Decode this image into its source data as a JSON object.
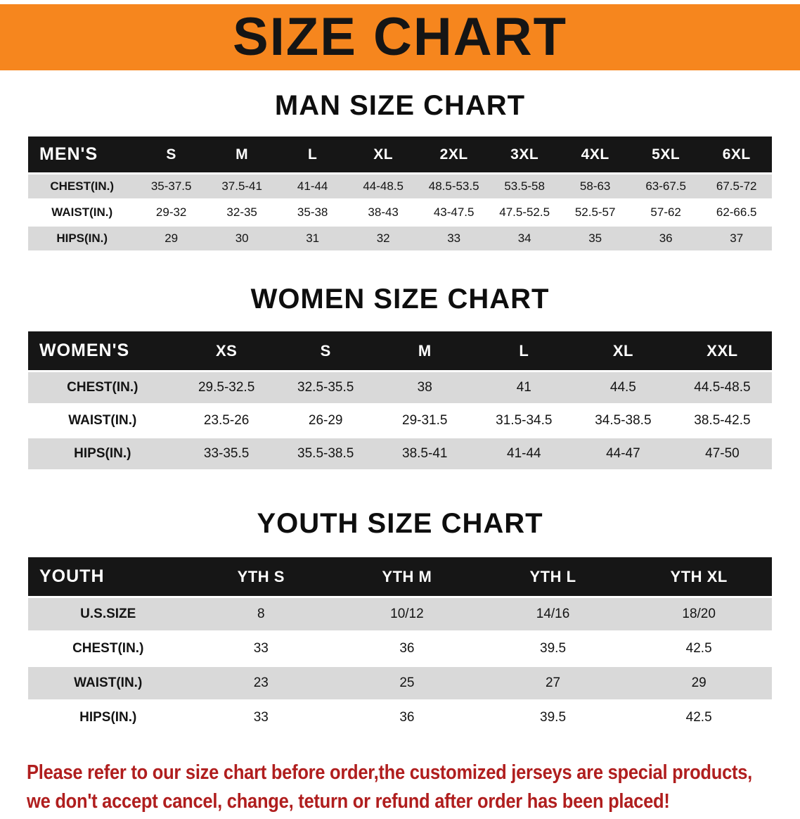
{
  "banner": {
    "title": "SIZE CHART"
  },
  "chart_data": [
    {
      "type": "table",
      "title": "MAN SIZE CHART",
      "columns": [
        "MEN'S",
        "S",
        "M",
        "L",
        "XL",
        "2XL",
        "3XL",
        "4XL",
        "5XL",
        "6XL"
      ],
      "rows": [
        [
          "CHEST(IN.)",
          "35-37.5",
          "37.5-41",
          "41-44",
          "44-48.5",
          "48.5-53.5",
          "53.5-58",
          "58-63",
          "63-67.5",
          "67.5-72"
        ],
        [
          "WAIST(IN.)",
          "29-32",
          "32-35",
          "35-38",
          "38-43",
          "43-47.5",
          "47.5-52.5",
          "52.5-57",
          "57-62",
          "62-66.5"
        ],
        [
          "HIPS(IN.)",
          "29",
          "30",
          "31",
          "32",
          "33",
          "34",
          "35",
          "36",
          "37"
        ]
      ]
    },
    {
      "type": "table",
      "title": "WOMEN SIZE CHART",
      "columns": [
        "WOMEN'S",
        "XS",
        "S",
        "M",
        "L",
        "XL",
        "XXL"
      ],
      "rows": [
        [
          "CHEST(IN.)",
          "29.5-32.5",
          "32.5-35.5",
          "38",
          "41",
          "44.5",
          "44.5-48.5"
        ],
        [
          "WAIST(IN.)",
          "23.5-26",
          "26-29",
          "29-31.5",
          "31.5-34.5",
          "34.5-38.5",
          "38.5-42.5"
        ],
        [
          "HIPS(IN.)",
          "33-35.5",
          "35.5-38.5",
          "38.5-41",
          "41-44",
          "44-47",
          "47-50"
        ]
      ]
    },
    {
      "type": "table",
      "title": "YOUTH SIZE CHART",
      "columns": [
        "YOUTH",
        "YTH S",
        "YTH M",
        "YTH L",
        "YTH XL"
      ],
      "rows": [
        [
          "U.S.SIZE",
          "8",
          "10/12",
          "14/16",
          "18/20"
        ],
        [
          "CHEST(IN.)",
          "33",
          "36",
          "39.5",
          "42.5"
        ],
        [
          "WAIST(IN.)",
          "23",
          "25",
          "27",
          "29"
        ],
        [
          "HIPS(IN.)",
          "33",
          "36",
          "39.5",
          "42.5"
        ]
      ]
    }
  ],
  "disclaimer": {
    "line1": "Please refer to our size chart before order,the customized jerseys are special products,",
    "line2": "we don't accept cancel, change, teturn or refund after order has been placed!"
  },
  "colors": {
    "banner_bg": "#F6861E",
    "table_header_bg": "#161616",
    "row_shade": "#D9D9D9",
    "disclaimer": "#B01E1E"
  }
}
